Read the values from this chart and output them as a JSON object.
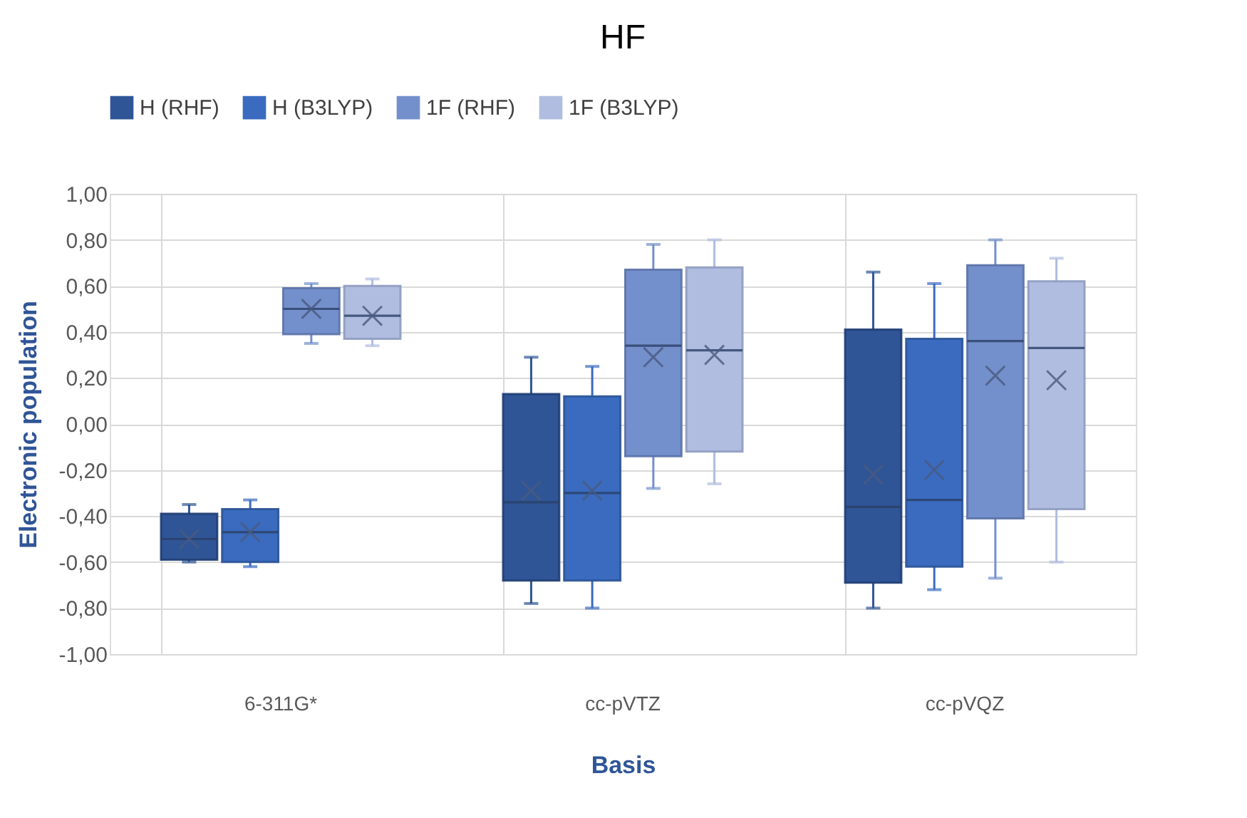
{
  "chart_data": {
    "type": "box",
    "title": "HF",
    "xlabel": "Basis",
    "ylabel": "Electronic population",
    "categories": [
      "6-311G*",
      "cc-pVTZ",
      "cc-pVQZ"
    ],
    "ylim": [
      -1.0,
      1.0
    ],
    "yticks": [
      {
        "value": -1.0,
        "label": "-1,00"
      },
      {
        "value": -0.8,
        "label": "-0,80"
      },
      {
        "value": -0.6,
        "label": "-0,60"
      },
      {
        "value": -0.4,
        "label": "-0,40"
      },
      {
        "value": -0.2,
        "label": "-0,20"
      },
      {
        "value": 0.0,
        "label": "0,00"
      },
      {
        "value": 0.2,
        "label": "0,20"
      },
      {
        "value": 0.4,
        "label": "0,40"
      },
      {
        "value": 0.6,
        "label": "0,60"
      },
      {
        "value": 0.8,
        "label": "0,80"
      },
      {
        "value": 1.0,
        "label": "1,00"
      }
    ],
    "grid": true,
    "legend": "top",
    "series": [
      {
        "name": "H (RHF)",
        "color": "#2f5597",
        "boxes": [
          {
            "low": -0.6,
            "q1": -0.59,
            "median": -0.5,
            "q3": -0.39,
            "high": -0.35,
            "mean": -0.5
          },
          {
            "low": -0.78,
            "q1": -0.68,
            "median": -0.34,
            "q3": 0.13,
            "high": 0.29,
            "mean": -0.29
          },
          {
            "low": -0.8,
            "q1": -0.69,
            "median": -0.36,
            "q3": 0.41,
            "high": 0.66,
            "mean": -0.22
          }
        ]
      },
      {
        "name": "H (B3LYP)",
        "color": "#3a6bbf",
        "boxes": [
          {
            "low": -0.62,
            "q1": -0.6,
            "median": -0.47,
            "q3": -0.37,
            "high": -0.33,
            "mean": -0.47
          },
          {
            "low": -0.8,
            "q1": -0.68,
            "median": -0.3,
            "q3": 0.12,
            "high": 0.25,
            "mean": -0.29
          },
          {
            "low": -0.72,
            "q1": -0.62,
            "median": -0.33,
            "q3": 0.37,
            "high": 0.61,
            "mean": -0.2
          }
        ]
      },
      {
        "name": "1F (RHF)",
        "color": "#7490cc",
        "boxes": [
          {
            "low": 0.35,
            "q1": 0.39,
            "median": 0.5,
            "q3": 0.59,
            "high": 0.61,
            "mean": 0.5
          },
          {
            "low": -0.28,
            "q1": -0.14,
            "median": 0.34,
            "q3": 0.67,
            "high": 0.78,
            "mean": 0.29
          },
          {
            "low": -0.67,
            "q1": -0.41,
            "median": 0.36,
            "q3": 0.69,
            "high": 0.8,
            "mean": 0.21
          }
        ]
      },
      {
        "name": "1F (B3LYP)",
        "color": "#b0bde0",
        "boxes": [
          {
            "low": 0.34,
            "q1": 0.37,
            "median": 0.47,
            "q3": 0.6,
            "high": 0.63,
            "mean": 0.47
          },
          {
            "low": -0.26,
            "q1": -0.12,
            "median": 0.32,
            "q3": 0.68,
            "high": 0.8,
            "mean": 0.3
          },
          {
            "low": -0.6,
            "q1": -0.37,
            "median": 0.33,
            "q3": 0.62,
            "high": 0.72,
            "mean": 0.19
          }
        ]
      }
    ]
  }
}
